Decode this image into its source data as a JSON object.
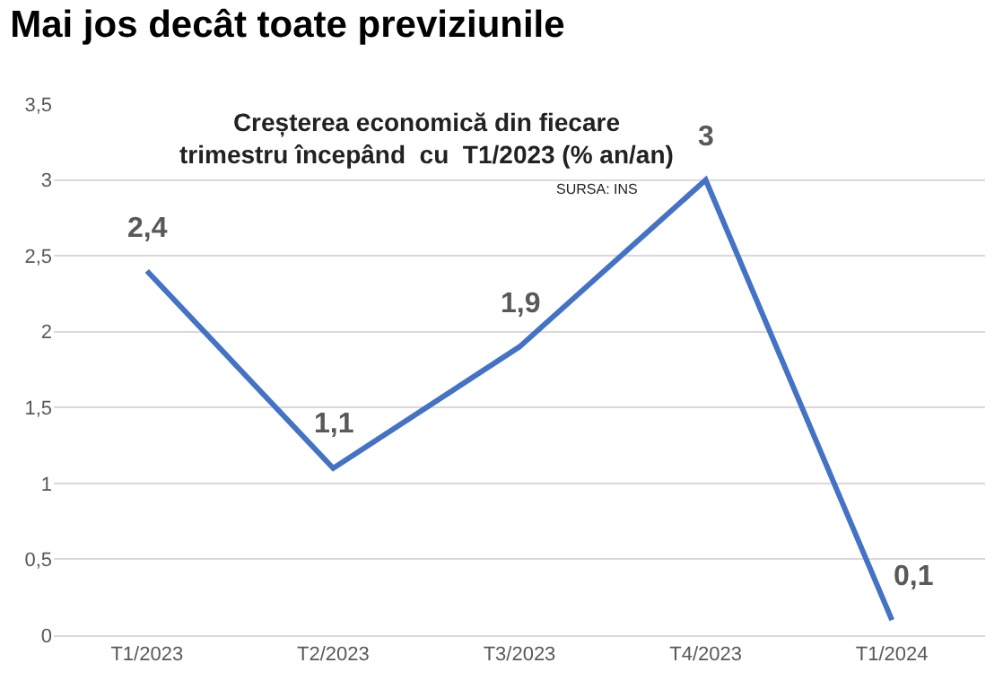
{
  "chart_data": {
    "type": "line",
    "title": "Mai jos decât toate previziunile",
    "subtitle": "Creșterea economică din fiecare\ntrimestru începând  cu  T1/2023 (% an/an)",
    "annotations": [
      "SURSA: INS"
    ],
    "categories": [
      "T1/2023",
      "T2/2023",
      "T3/2023",
      "T4/2023",
      "T1/2024"
    ],
    "series": [
      {
        "color": "#4472c4",
        "values": [
          2.4,
          1.1,
          1.9,
          3,
          0.1
        ],
        "value_labels": [
          "2,4",
          "1,1",
          "1,9",
          "3",
          "0,1"
        ]
      }
    ],
    "ylim": [
      0,
      3.5
    ],
    "yticks": [
      0,
      {
        "value": 0.5,
        "label": "0,5"
      },
      1,
      {
        "value": 1.5,
        "label": "1,5"
      },
      2,
      {
        "value": 2.5,
        "label": "2,5"
      },
      3,
      {
        "value": 3.5,
        "label": "3,5"
      }
    ],
    "grid": "y",
    "marker": "none",
    "line_style": "solid"
  }
}
